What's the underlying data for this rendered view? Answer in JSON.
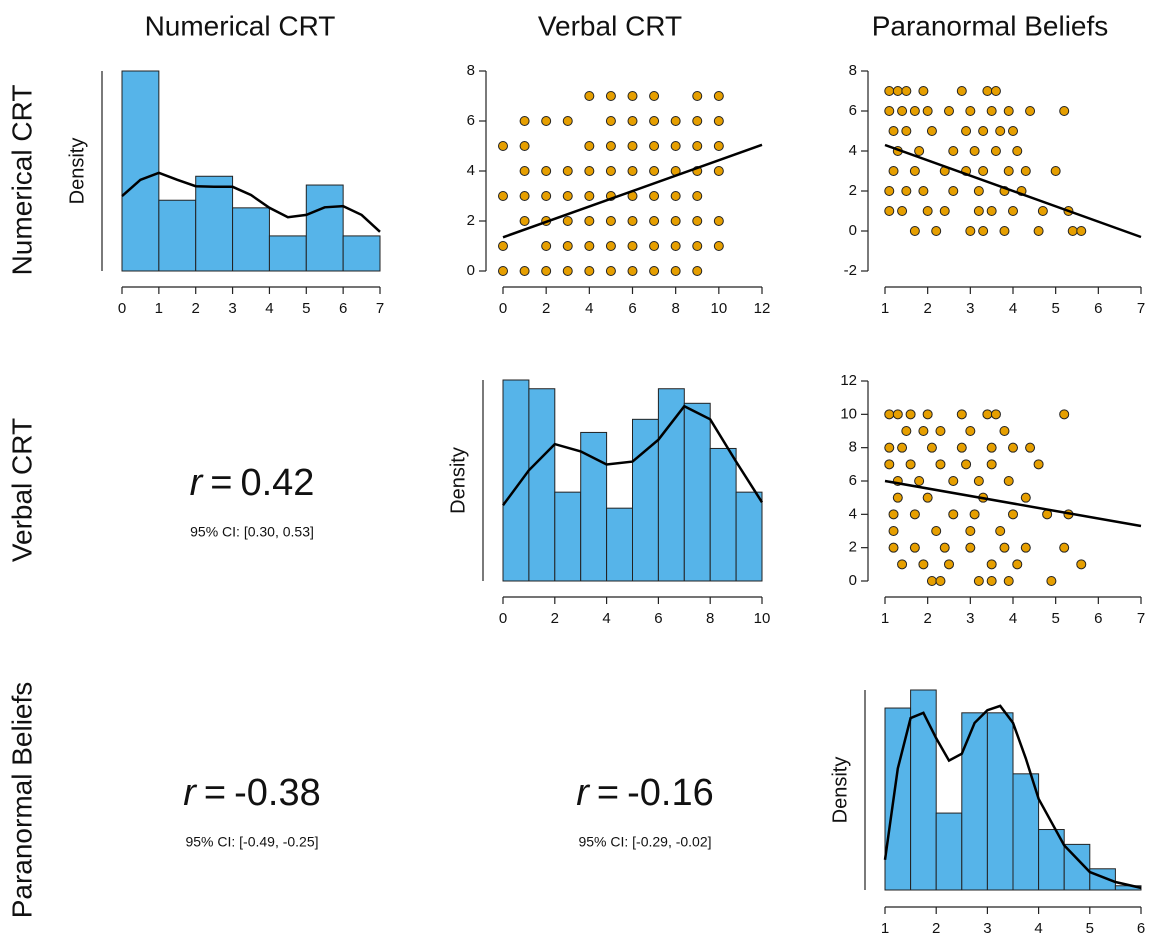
{
  "columns": [
    "Numerical CRT",
    "Verbal CRT",
    "Paranormal Beliefs"
  ],
  "rows": [
    "Numerical CRT",
    "Verbal CRT",
    "Paranormal Beliefs"
  ],
  "correlations": [
    {
      "statistic": "r",
      "operator": "=",
      "value": 0.42,
      "ci": "95% CI: [0.30, 0.53]"
    },
    {
      "statistic": "r",
      "operator": "=",
      "value": -0.38,
      "ci": "95% CI: [-0.49, -0.25]"
    },
    {
      "statistic": "r",
      "operator": "=",
      "value": -0.16,
      "ci": "95% CI: [-0.29, -0.02]"
    }
  ],
  "chart_data": [
    {
      "type": "histogram",
      "ylabel": "Density",
      "color": "#56b4e9",
      "bins": [
        0,
        1,
        2,
        3,
        4,
        5,
        6,
        7
      ],
      "values": [
        0.342,
        0.121,
        0.162,
        0.108,
        0.06,
        0.147,
        0.06
      ],
      "curve": {
        "x": [
          0,
          0.5,
          1,
          1.5,
          2,
          2.5,
          3,
          3.5,
          4,
          4.5,
          5,
          5.5,
          6,
          6.5,
          7
        ],
        "values": [
          0.128,
          0.156,
          0.168,
          0.156,
          0.145,
          0.144,
          0.144,
          0.13,
          0.108,
          0.092,
          0.096,
          0.109,
          0.111,
          0.096,
          0.067
        ]
      },
      "xlim": [
        0,
        7
      ],
      "xticks": [
        0,
        1,
        2,
        3,
        4,
        5,
        6,
        7
      ],
      "ylim": [
        0,
        0.342
      ]
    },
    {
      "type": "scatter",
      "color": "#e69f00",
      "x": [
        4,
        5,
        6,
        7,
        9,
        10,
        1,
        2,
        3,
        5,
        6,
        7,
        8,
        9,
        10,
        0,
        1,
        4,
        5,
        6,
        7,
        8,
        9,
        10,
        1,
        2,
        3,
        4,
        5,
        6,
        7,
        8,
        9,
        10,
        0,
        1,
        2,
        3,
        4,
        5,
        6,
        7,
        8,
        9,
        1,
        2,
        3,
        4,
        5,
        6,
        7,
        8,
        9,
        10,
        0,
        2,
        3,
        4,
        5,
        6,
        7,
        8,
        9,
        10,
        0,
        1,
        2,
        3,
        4,
        5,
        6,
        7,
        8,
        9
      ],
      "values": [
        7,
        7,
        7,
        7,
        7,
        7,
        6,
        6,
        6,
        6,
        6,
        6,
        6,
        6,
        6,
        5,
        5,
        5,
        5,
        5,
        5,
        5,
        5,
        5,
        4,
        4,
        4,
        4,
        4,
        4,
        4,
        4,
        4,
        4,
        3,
        3,
        3,
        3,
        3,
        3,
        3,
        3,
        3,
        3,
        2,
        2,
        2,
        2,
        2,
        2,
        2,
        2,
        2,
        2,
        1,
        1,
        1,
        1,
        1,
        1,
        1,
        1,
        1,
        1,
        0,
        0,
        0,
        0,
        0,
        0,
        0,
        0,
        0,
        0
      ],
      "fit": {
        "x": [
          0,
          12
        ],
        "values": [
          1.35,
          5.05
        ]
      },
      "xlim": [
        0,
        12
      ],
      "xticks": [
        0,
        2,
        4,
        6,
        8,
        10,
        12
      ],
      "ylim": [
        0,
        8
      ],
      "yticks": [
        0,
        2,
        4,
        6,
        8
      ]
    },
    {
      "type": "scatter",
      "color": "#e69f00",
      "x": [
        1.1,
        1.3,
        1.5,
        1.9,
        2.8,
        3.4,
        3.6,
        1.1,
        1.4,
        1.7,
        2.0,
        2.5,
        3.0,
        3.5,
        3.9,
        4.4,
        5.2,
        1.2,
        1.5,
        2.1,
        2.9,
        3.3,
        3.7,
        4.0,
        1.3,
        1.8,
        2.6,
        3.1,
        3.6,
        4.1,
        1.2,
        1.7,
        2.4,
        2.9,
        3.3,
        3.9,
        4.3,
        5.0,
        1.1,
        1.5,
        1.9,
        2.6,
        3.2,
        3.8,
        4.2,
        1.1,
        1.4,
        2.0,
        2.4,
        3.2,
        3.5,
        4.0,
        4.7,
        5.3,
        1.7,
        2.2,
        3.0,
        3.3,
        3.8,
        4.6,
        5.4,
        5.6
      ],
      "values": [
        7,
        7,
        7,
        7,
        7,
        7,
        7,
        6,
        6,
        6,
        6,
        6,
        6,
        6,
        6,
        6,
        6,
        5,
        5,
        5,
        5,
        5,
        5,
        5,
        4,
        4,
        4,
        4,
        4,
        4,
        3,
        3,
        3,
        3,
        3,
        3,
        3,
        3,
        2,
        2,
        2,
        2,
        2,
        2,
        2,
        1,
        1,
        1,
        1,
        1,
        1,
        1,
        1,
        1,
        0,
        0,
        0,
        0,
        0,
        0,
        0,
        0
      ],
      "fit": {
        "x": [
          1,
          7
        ],
        "values": [
          4.3,
          -0.3
        ]
      },
      "xlim": [
        1,
        7
      ],
      "xticks": [
        1,
        2,
        3,
        4,
        5,
        6,
        7
      ],
      "ylim": [
        -2,
        8
      ],
      "yticks": [
        -2,
        0,
        2,
        4,
        6,
        8
      ]
    },
    {
      "type": "histogram",
      "ylabel": "Density",
      "color": "#56b4e9",
      "bins": [
        0,
        1,
        2,
        3,
        4,
        5,
        6,
        7,
        8,
        9,
        10
      ],
      "values": [
        0.138,
        0.132,
        0.061,
        0.102,
        0.05,
        0.111,
        0.132,
        0.122,
        0.091,
        0.061
      ],
      "curve": {
        "x": [
          0,
          1,
          2,
          3,
          4,
          5,
          6,
          7,
          8,
          9,
          10
        ],
        "values": [
          0.052,
          0.076,
          0.094,
          0.089,
          0.08,
          0.082,
          0.097,
          0.12,
          0.111,
          0.082,
          0.054
        ]
      },
      "xlim": [
        0,
        10
      ],
      "xticks": [
        0,
        2,
        4,
        6,
        8,
        10
      ],
      "ylim": [
        0,
        0.138
      ]
    },
    {
      "type": "scatter",
      "color": "#e69f00",
      "x": [
        1.1,
        1.3,
        1.6,
        2.0,
        2.8,
        3.4,
        3.6,
        5.2,
        1.5,
        1.9,
        2.3,
        3.0,
        3.8,
        1.1,
        1.4,
        2.1,
        2.8,
        3.5,
        4.0,
        4.4,
        1.1,
        1.6,
        2.3,
        2.9,
        3.5,
        4.6,
        1.3,
        1.8,
        2.6,
        3.2,
        3.9,
        1.3,
        2.0,
        3.3,
        4.3,
        1.2,
        1.7,
        2.6,
        3.1,
        4.0,
        4.8,
        5.3,
        1.2,
        2.2,
        3.0,
        3.7,
        1.2,
        1.7,
        2.4,
        3.0,
        3.8,
        4.3,
        5.2,
        1.4,
        1.9,
        2.5,
        3.5,
        4.1,
        5.6,
        2.1,
        2.3,
        3.2,
        3.5,
        3.9,
        4.9
      ],
      "values": [
        10,
        10,
        10,
        10,
        10,
        10,
        10,
        10,
        9,
        9,
        9,
        9,
        9,
        8,
        8,
        8,
        8,
        8,
        8,
        8,
        7,
        7,
        7,
        7,
        7,
        7,
        6,
        6,
        6,
        6,
        6,
        5,
        5,
        5,
        5,
        4,
        4,
        4,
        4,
        4,
        4,
        4,
        3,
        3,
        3,
        3,
        2,
        2,
        2,
        2,
        2,
        2,
        2,
        1,
        1,
        1,
        1,
        1,
        1,
        0,
        0,
        0,
        0,
        0,
        0
      ],
      "fit": {
        "x": [
          1,
          7
        ],
        "values": [
          6.0,
          3.3
        ]
      },
      "xlim": [
        1,
        7
      ],
      "xticks": [
        1,
        2,
        3,
        4,
        5,
        6,
        7
      ],
      "ylim": [
        0,
        12
      ],
      "yticks": [
        0,
        2,
        4,
        6,
        8,
        10,
        12
      ]
    },
    {
      "type": "histogram",
      "ylabel": "Density",
      "color": "#56b4e9",
      "bins": [
        1,
        1.5,
        2,
        2.5,
        3,
        3.5,
        4,
        4.5,
        5,
        5.5,
        6
      ],
      "values": [
        0.343,
        0.377,
        0.145,
        0.334,
        0.334,
        0.219,
        0.114,
        0.086,
        0.04,
        0.008
      ],
      "curve": {
        "x": [
          1,
          1.25,
          1.5,
          1.75,
          2,
          2.25,
          2.5,
          2.75,
          3,
          3.25,
          3.5,
          3.75,
          4,
          4.5,
          5,
          5.5,
          6
        ],
        "values": [
          0.057,
          0.229,
          0.324,
          0.334,
          0.286,
          0.244,
          0.257,
          0.315,
          0.339,
          0.347,
          0.315,
          0.248,
          0.172,
          0.084,
          0.034,
          0.015,
          0.004
        ]
      },
      "xlim": [
        1,
        6
      ],
      "xticks": [
        1,
        2,
        3,
        4,
        5,
        6
      ],
      "ylim": [
        0,
        0.377
      ]
    }
  ]
}
